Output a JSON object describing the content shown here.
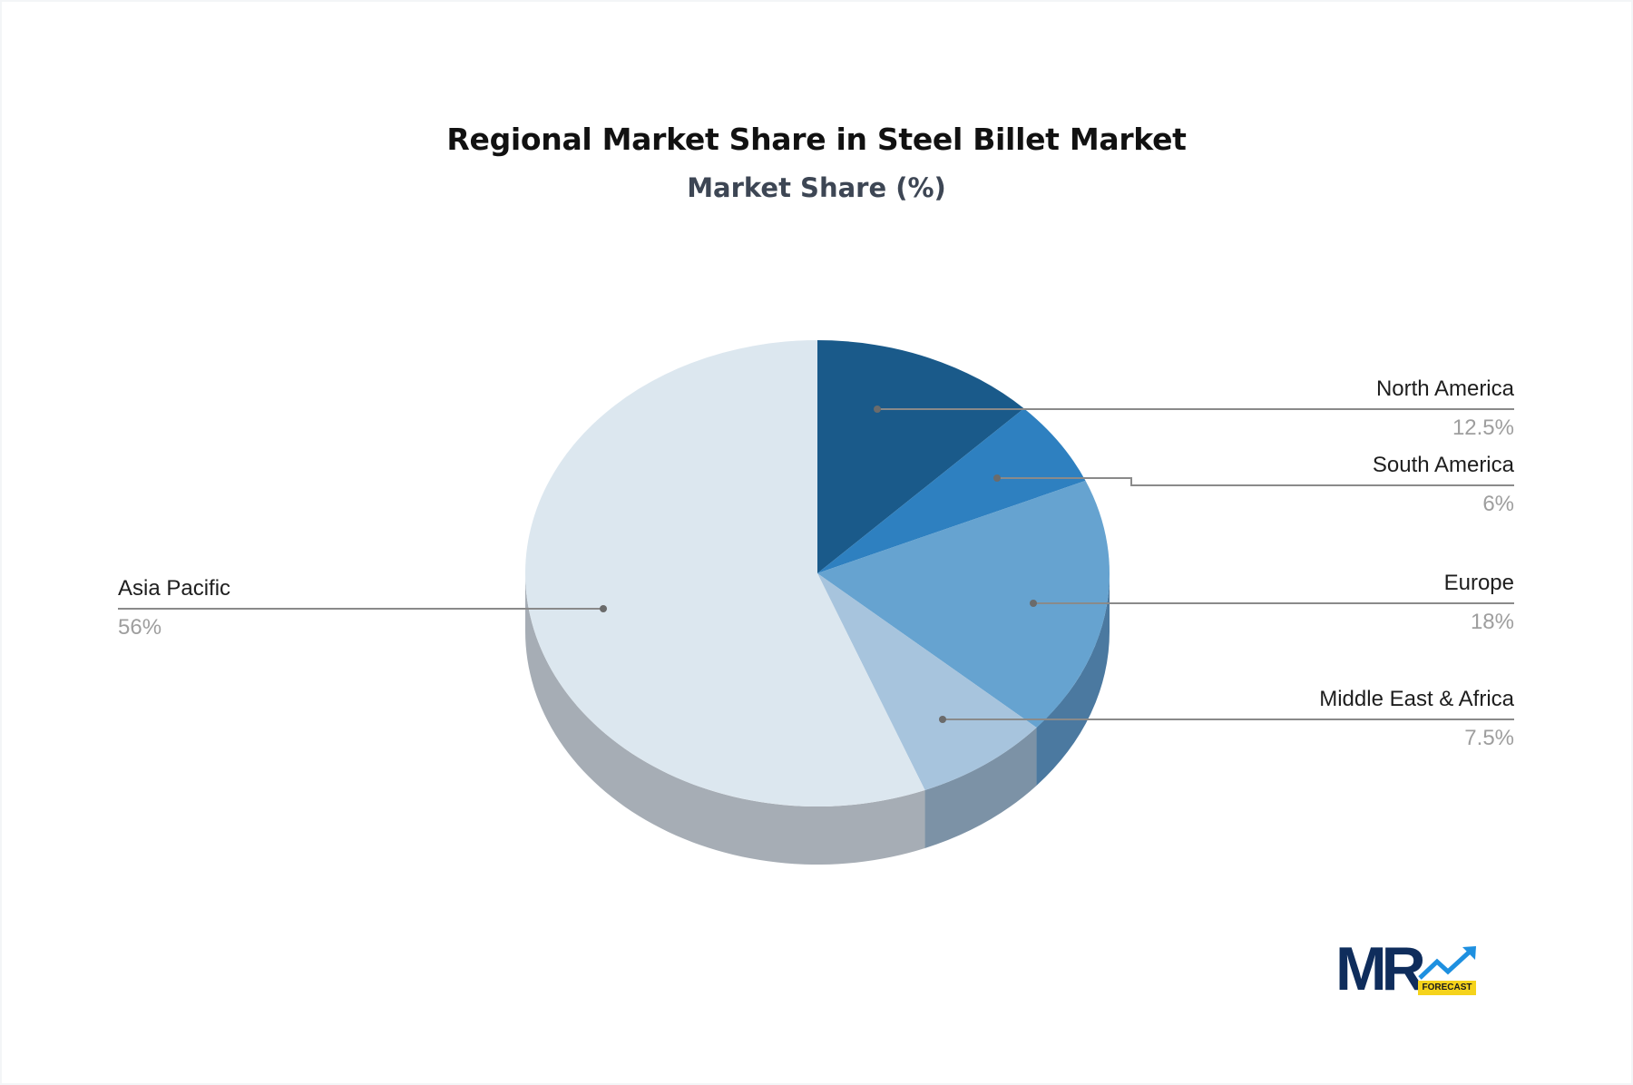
{
  "header": {
    "title": "Regional Market Share in Steel Billet Market",
    "subtitle": "Market Share (%)"
  },
  "logo": {
    "text": "MR",
    "badge": "FORECAST",
    "colors": {
      "text": "#0f2d5c",
      "arrow": "#1e90e0",
      "badge": "#f5d31c"
    }
  },
  "chart_data": {
    "type": "pie",
    "style": "3d",
    "title": "Regional Market Share in Steel Billet Market",
    "subtitle": "Market Share (%)",
    "unit": "%",
    "start_angle": "12 o'clock, clockwise",
    "categories": [
      "North America",
      "South America",
      "Europe",
      "Middle East & Africa",
      "Asia Pacific"
    ],
    "values": [
      12.5,
      6,
      18,
      7.5,
      56
    ],
    "labels": [
      "12.5%",
      "6%",
      "18%",
      "7.5%",
      "56%"
    ],
    "colors": [
      "#1a5a8a",
      "#2e80c0",
      "#66a3d0",
      "#a7c4dd",
      "#dce7ef"
    ],
    "side_colors": [
      "#134268",
      "#225f8e",
      "#4b79a0",
      "#7c92a6",
      "#a6adb5"
    ],
    "legend": "none (callout labels)"
  },
  "callouts": [
    {
      "name": "North America",
      "value": "12.5%",
      "side": "right"
    },
    {
      "name": "South America",
      "value": "6%",
      "side": "right"
    },
    {
      "name": "Europe",
      "value": "18%",
      "side": "right"
    },
    {
      "name": "Middle East & Africa",
      "value": "7.5%",
      "side": "right"
    },
    {
      "name": "Asia Pacific",
      "value": "56%",
      "side": "left"
    }
  ]
}
